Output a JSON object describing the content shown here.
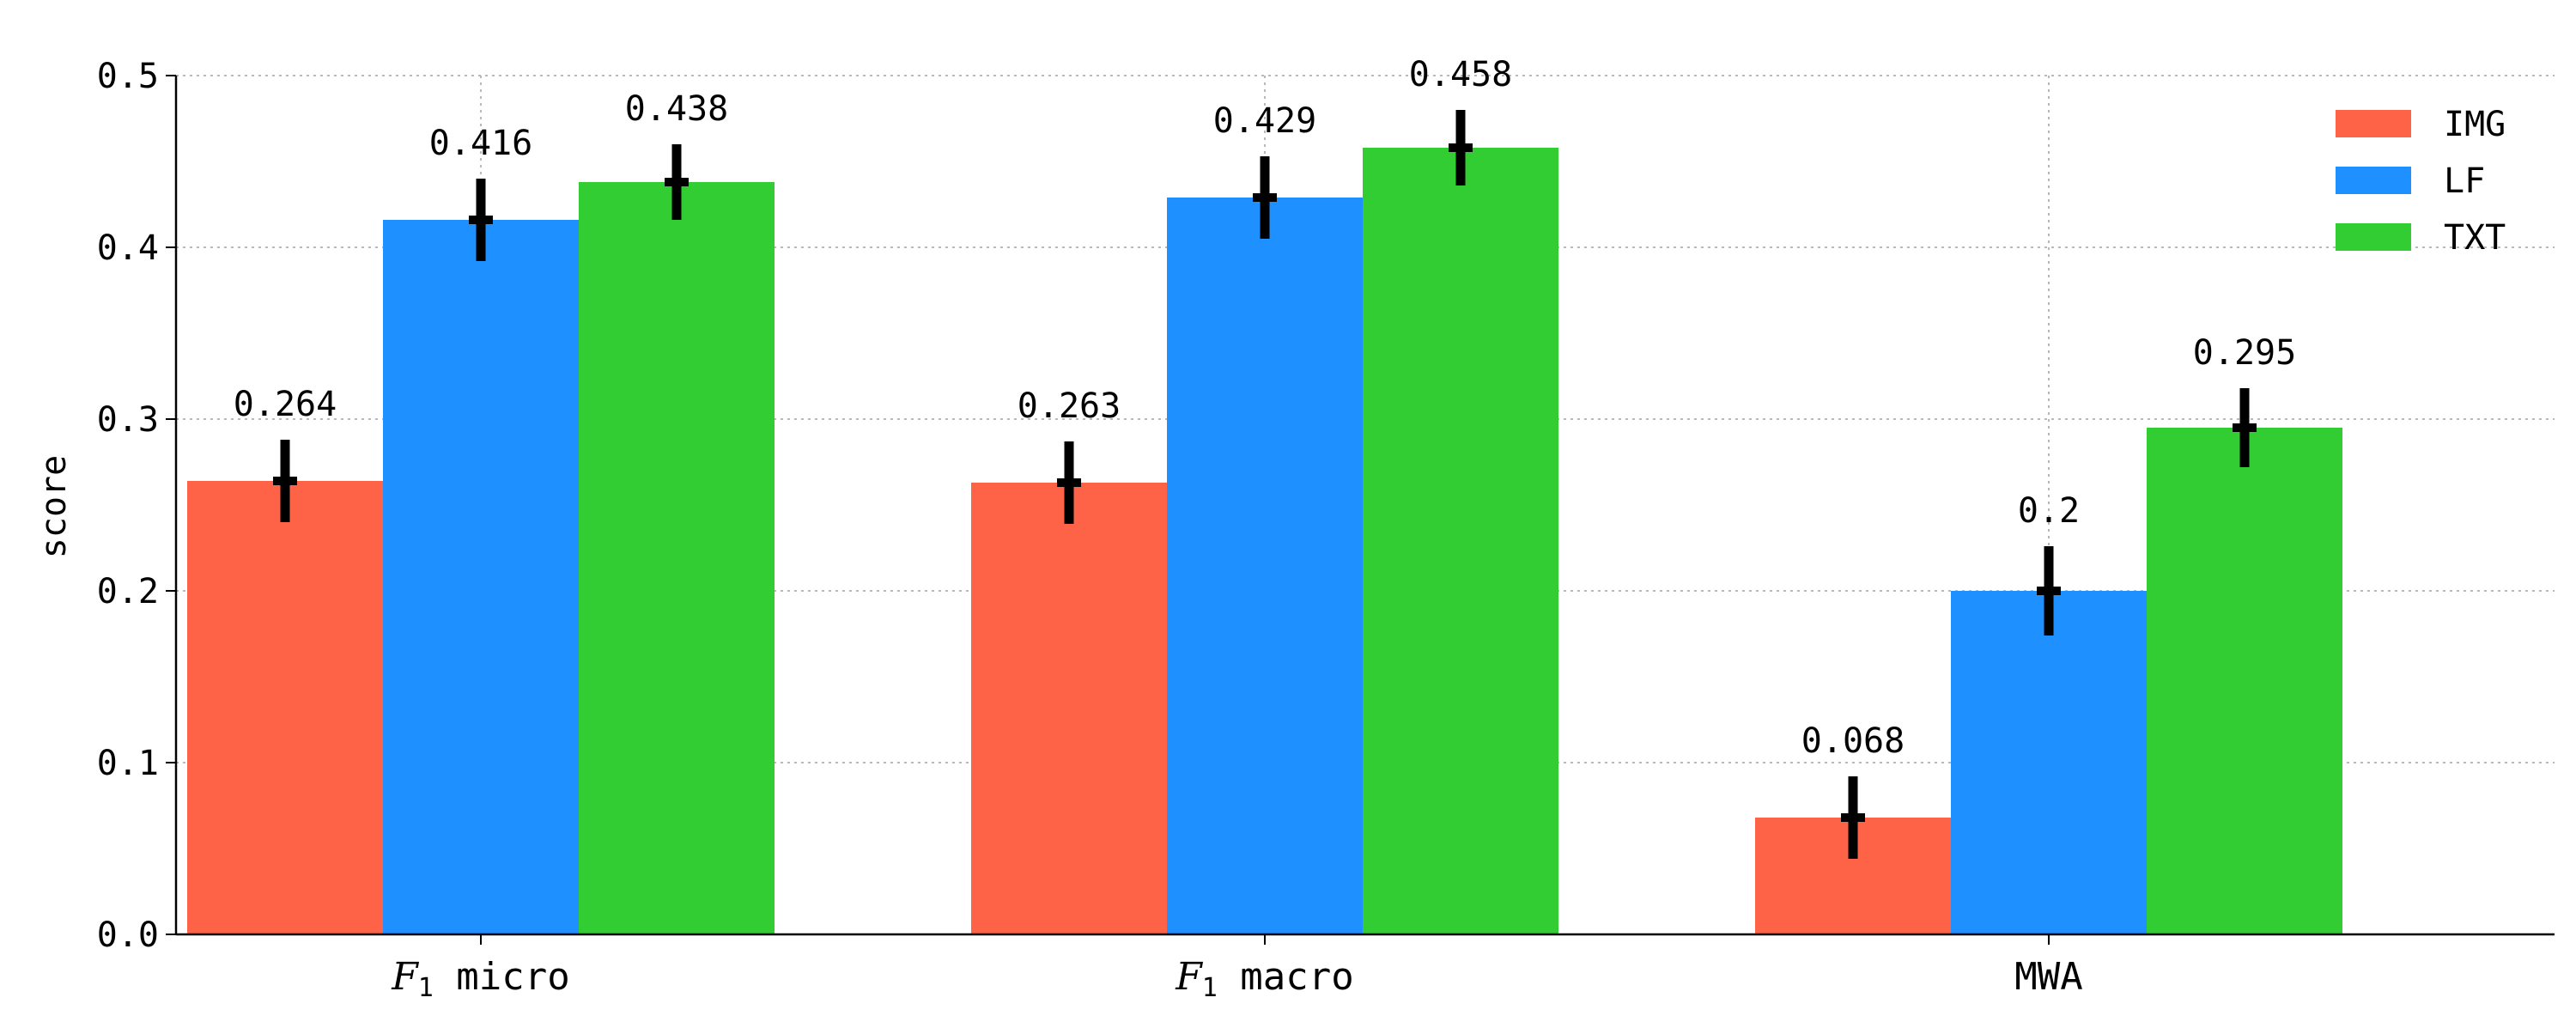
{
  "chart_data": {
    "type": "bar",
    "categories": [
      "micro",
      "macro",
      "MWA"
    ],
    "category_prefix": [
      "F",
      "F",
      ""
    ],
    "category_prefix_sub": [
      "1",
      "1",
      ""
    ],
    "series": [
      {
        "name": "IMG",
        "color": "#ff6347",
        "values": [
          0.264,
          0.263,
          0.068
        ],
        "labels": [
          "0.264",
          "0.263",
          "0.068"
        ],
        "err": [
          0.024,
          0.024,
          0.024
        ]
      },
      {
        "name": "LF",
        "color": "#1e90ff",
        "values": [
          0.416,
          0.429,
          0.2
        ],
        "labels": [
          "0.416",
          "0.429",
          "0.2"
        ],
        "err": [
          0.024,
          0.024,
          0.026
        ]
      },
      {
        "name": "TXT",
        "color": "#32cd32",
        "values": [
          0.438,
          0.458,
          0.295
        ],
        "labels": [
          "0.438",
          "0.458",
          "0.295"
        ],
        "err": [
          0.022,
          0.022,
          0.023
        ]
      }
    ],
    "ylabel": "score",
    "ylim": [
      0,
      0.5
    ],
    "yticks": [
      0.0,
      0.1,
      0.2,
      0.3,
      0.4,
      0.5
    ],
    "ytick_labels": [
      "0.0",
      "0.1",
      "0.2",
      "0.3",
      "0.4",
      "0.5"
    ],
    "grid": true,
    "legend_position": "top-right"
  }
}
